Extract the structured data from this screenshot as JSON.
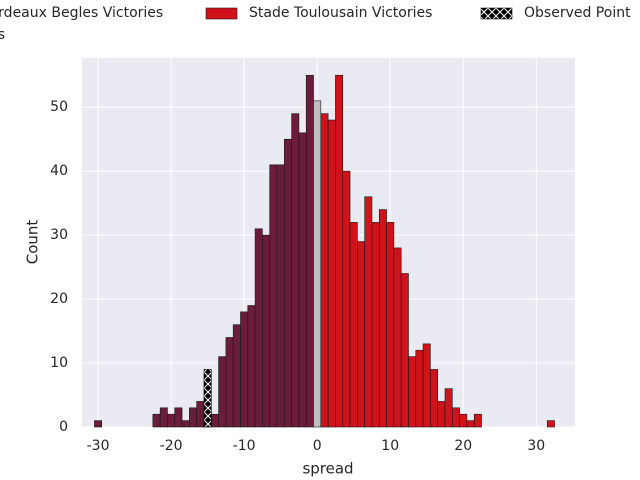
{
  "chart_data": {
    "type": "histogram",
    "xlabel": "spread",
    "ylabel": "Count",
    "xlim": [
      -32.2,
      35.3
    ],
    "ylim": [
      0,
      57.7
    ],
    "xticks": [
      -30,
      -20,
      -10,
      0,
      10,
      20,
      30
    ],
    "yticks": [
      0,
      10,
      20,
      30,
      40,
      50
    ],
    "grid": true,
    "legend": "top",
    "series": [
      {
        "name": "Bordeaux Begles Victories",
        "color": "#6a1c3a",
        "bins": [
          -30.5,
          -29.5,
          -28.5,
          -27.5,
          -26.5,
          -25.5,
          -24.5,
          -23.5,
          -22.5,
          -21.5,
          -20.5,
          -19.5,
          -18.5,
          -17.5,
          -16.5,
          -15.5,
          -14.5,
          -13.5,
          -12.5,
          -11.5,
          -10.5,
          -9.5,
          -8.5,
          -7.5,
          -6.5,
          -5.5,
          -4.5,
          -3.5,
          -2.5,
          -1.5,
          -0.5
        ],
        "values": [
          1,
          0,
          0,
          0,
          0,
          0,
          0,
          0,
          2,
          3,
          2,
          3,
          1,
          3,
          4,
          3,
          2,
          11,
          14,
          16,
          18,
          19,
          31,
          30,
          41,
          41,
          45,
          49,
          46,
          55
        ]
      },
      {
        "name": "Stade Toulousain Victories",
        "color": "#d0121b",
        "bins": [
          0.5,
          1.5,
          2.5,
          3.5,
          4.5,
          5.5,
          6.5,
          7.5,
          8.5,
          9.5,
          10.5,
          11.5,
          12.5,
          13.5,
          14.5,
          15.5,
          16.5,
          17.5,
          18.5,
          19.5,
          20.5,
          21.5,
          22.5,
          23.5,
          24.5,
          25.5,
          26.5,
          27.5,
          28.5,
          29.5,
          30.5,
          31.5,
          32.5
        ],
        "values": [
          49,
          48,
          55,
          40,
          32,
          29,
          36,
          32,
          34,
          32,
          28,
          24,
          11,
          12,
          13,
          9,
          4,
          6,
          3,
          2,
          1,
          2,
          0,
          0,
          0,
          0,
          0,
          0,
          0,
          0,
          0,
          1
        ]
      },
      {
        "name": "Draws",
        "color": "#c0c0c0",
        "bins": [
          -0.5,
          0.5
        ],
        "values": [
          51
        ]
      }
    ],
    "observed": {
      "name": "Observed Point",
      "x": -15,
      "value": 9,
      "color": "#000000"
    }
  }
}
